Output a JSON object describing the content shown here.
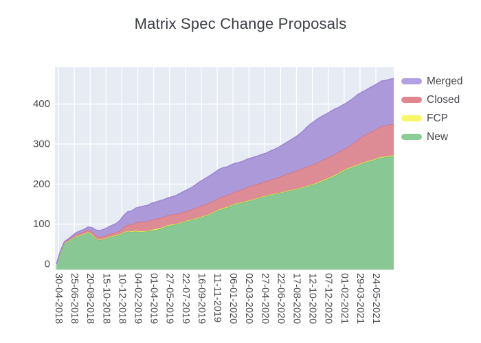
{
  "header": {
    "title": "Matrix Spec Change Proposals"
  },
  "legend": {
    "items": [
      {
        "label": "Merged",
        "color": "#b3a0e2"
      },
      {
        "label": "Closed",
        "color": "#e1858e"
      },
      {
        "label": "FCP",
        "color": "#f7f768"
      },
      {
        "label": "New",
        "color": "#8ccd97"
      }
    ]
  },
  "chart_data": {
    "type": "area",
    "stacked": true,
    "title": "Matrix Spec Change Proposals",
    "xlabel": "",
    "ylabel": "",
    "plot_bg": "#e7ebf4",
    "grid_color": "#ffffff",
    "grid_on": true,
    "legend_position": "right-top",
    "y_ticks": [
      0,
      100,
      200,
      300,
      400
    ],
    "ylim": [
      0,
      492
    ],
    "x_tick_labels": [
      "30-04-2018",
      "25-06-2018",
      "20-08-2018",
      "15-10-2018",
      "10-12-2018",
      "04-02-2019",
      "01-04-2019",
      "27-05-2019",
      "22-07-2019",
      "16-09-2019",
      "11-11-2019",
      "06-01-2020",
      "02-03-2020",
      "27-04-2020",
      "22-06-2020",
      "17-08-2020",
      "12-10-2020",
      "07-12-2020",
      "01-02-2021",
      "29-03-2021",
      "24-05-2021"
    ],
    "x_tick_weeks": [
      0,
      8,
      16,
      24,
      32,
      40,
      48,
      56,
      64,
      72,
      80,
      88,
      96,
      104,
      112,
      120,
      128,
      136,
      144,
      152,
      160
    ],
    "x_unit": "weeks since 30-04-2018",
    "x": [
      -1,
      1,
      3,
      5,
      7,
      9,
      11,
      13,
      15,
      17,
      19,
      21,
      23,
      25,
      27,
      29,
      31,
      33,
      35,
      37,
      39,
      41,
      43,
      45,
      47,
      49,
      51,
      53,
      55,
      57,
      59,
      61,
      63,
      65,
      67,
      69,
      71,
      73,
      75,
      77,
      79,
      81,
      83,
      85,
      87,
      89,
      91,
      93,
      95,
      97,
      99,
      101,
      103,
      105,
      107,
      109,
      111,
      113,
      115,
      117,
      119,
      121,
      123,
      125,
      127,
      129,
      131,
      133,
      135,
      137,
      139,
      141,
      143,
      145,
      147,
      149,
      151,
      153,
      155,
      157,
      159,
      161,
      163,
      165,
      167,
      169
    ],
    "stack_order_bottom_to_top": [
      "New",
      "FCP",
      "Closed",
      "Merged"
    ],
    "series": [
      {
        "name": "New",
        "fill": "#89c795",
        "line": "#6dbb80",
        "values": [
          0,
          30,
          52,
          57,
          63,
          69,
          71,
          75,
          79,
          73,
          63,
          60,
          62,
          66,
          68,
          71,
          74,
          79,
          82,
          80,
          82,
          80,
          81,
          82,
          84,
          85,
          88,
          91,
          95,
          97,
          99,
          102,
          105,
          108,
          110,
          113,
          116,
          119,
          122,
          126,
          131,
          135,
          138,
          141,
          146,
          149,
          152,
          154,
          157,
          159,
          162,
          165,
          168,
          170,
          173,
          175,
          177,
          179,
          182,
          184,
          186,
          188,
          191,
          194,
          197,
          199,
          203,
          207,
          211,
          215,
          220,
          225,
          231,
          236,
          240,
          243,
          247,
          251,
          254,
          257,
          260,
          264,
          266,
          267,
          269,
          270
        ]
      },
      {
        "name": "FCP",
        "fill": "#f1ef72",
        "line": "#e3e23e",
        "values": [
          0,
          1,
          1,
          1,
          1,
          1,
          1,
          1,
          1,
          1,
          1,
          1,
          1,
          1,
          2,
          1,
          1,
          1,
          1,
          2,
          2,
          2,
          2,
          1,
          2,
          3,
          2,
          2,
          2,
          2,
          1,
          1,
          1,
          1,
          1,
          1,
          1,
          1,
          1,
          1,
          1,
          2,
          2,
          2,
          1,
          2,
          1,
          1,
          1,
          1,
          1,
          1,
          1,
          1,
          1,
          1,
          1,
          1,
          1,
          1,
          1,
          1,
          1,
          1,
          1,
          2,
          2,
          2,
          2,
          2,
          2,
          2,
          2,
          2,
          2,
          2,
          2,
          2,
          2,
          2,
          2,
          2,
          2,
          2,
          2,
          2
        ]
      },
      {
        "name": "Closed",
        "fill": "#dd8b94",
        "line": "#d5737f",
        "values": [
          0,
          1,
          1,
          2,
          3,
          4,
          5,
          5,
          6,
          7,
          7,
          7,
          7,
          7,
          7,
          7,
          8,
          12,
          15,
          17,
          20,
          23,
          24,
          24,
          25,
          25,
          25,
          25,
          25,
          25,
          25,
          24,
          24,
          24,
          25,
          26,
          27,
          28,
          28,
          28,
          28,
          28,
          29,
          29,
          30,
          30,
          31,
          32,
          34,
          35,
          35,
          35,
          36,
          36,
          37,
          38,
          39,
          41,
          42,
          43,
          45,
          46,
          47,
          48,
          48,
          49,
          50,
          51,
          51,
          52,
          52,
          52,
          52,
          52,
          54,
          58,
          62,
          65,
          68,
          70,
          72,
          74,
          77,
          77,
          78,
          78
        ]
      },
      {
        "name": "Merged",
        "fill": "#ab99da",
        "line": "#9d87d3",
        "values": [
          0,
          1,
          2,
          3,
          4,
          5,
          6,
          6,
          7,
          10,
          14,
          16,
          17,
          18,
          20,
          22,
          26,
          30,
          33,
          34,
          36,
          38,
          38,
          40,
          41,
          42,
          43,
          43,
          43,
          44,
          46,
          49,
          51,
          53,
          55,
          58,
          61,
          63,
          66,
          68,
          70,
          72,
          72,
          71,
          71,
          71,
          70,
          70,
          70,
          70,
          70,
          70,
          70,
          71,
          72,
          73,
          75,
          77,
          79,
          82,
          84,
          88,
          92,
          98,
          104,
          107,
          109,
          110,
          111,
          112,
          113,
          112,
          112,
          112,
          113,
          113,
          113,
          112,
          111,
          112,
          112,
          112,
          113,
          113,
          113,
          114
        ]
      }
    ]
  }
}
